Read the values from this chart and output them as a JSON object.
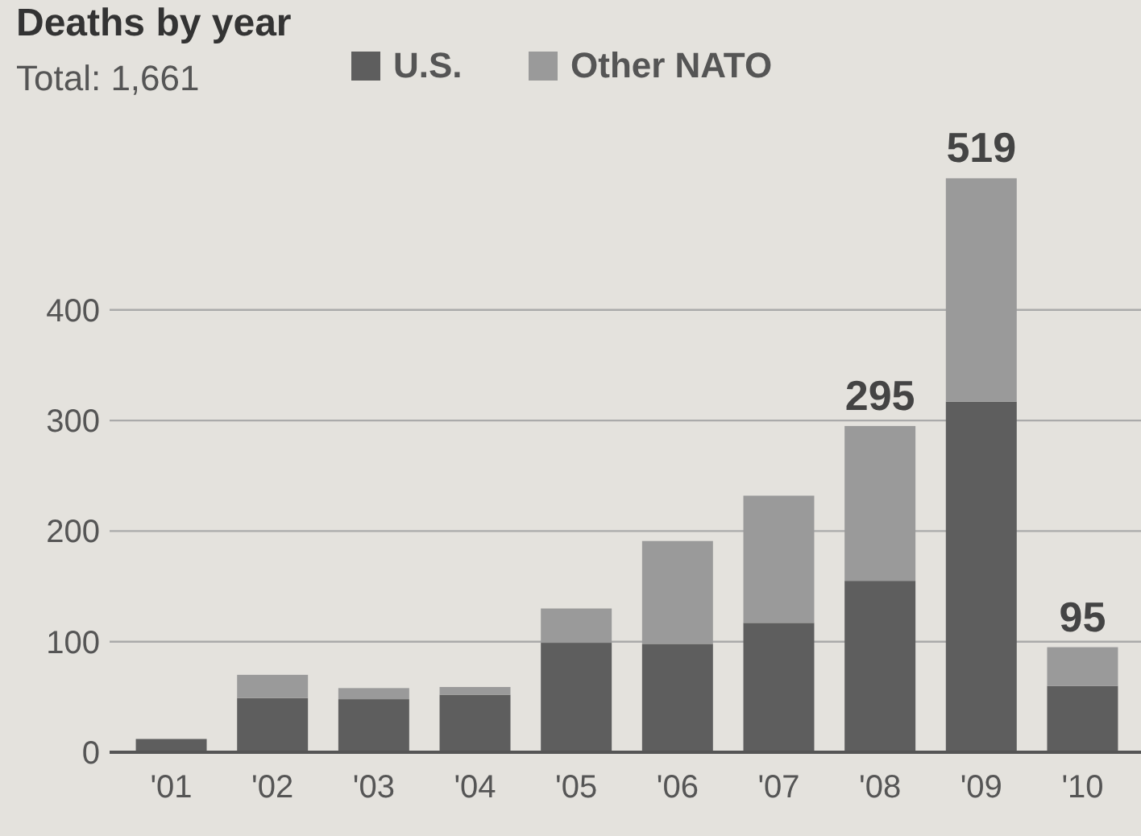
{
  "chart_data": {
    "type": "bar",
    "title": "Deaths by year",
    "annotations": [
      "Total: 1,661"
    ],
    "categories": [
      "'01",
      "'02",
      "'03",
      "'04",
      "'05",
      "'06",
      "'07",
      "'08",
      "'09",
      "'10"
    ],
    "series": [
      {
        "name": "U.S.",
        "color": "#5e5e5e",
        "values": [
          12,
          49,
          48,
          52,
          99,
          98,
          117,
          155,
          317,
          60
        ]
      },
      {
        "name": "Other NATO",
        "color": "#9a9a9a",
        "values": [
          0,
          21,
          10,
          7,
          31,
          93,
          115,
          140,
          202,
          35
        ]
      }
    ],
    "stacked": true,
    "ylim": [
      0,
      520
    ],
    "yticks": [
      0,
      100,
      200,
      300,
      400
    ],
    "grid": "y",
    "legend": "top left",
    "totals": [
      null,
      null,
      null,
      null,
      null,
      null,
      null,
      "295",
      "519",
      "95"
    ]
  }
}
